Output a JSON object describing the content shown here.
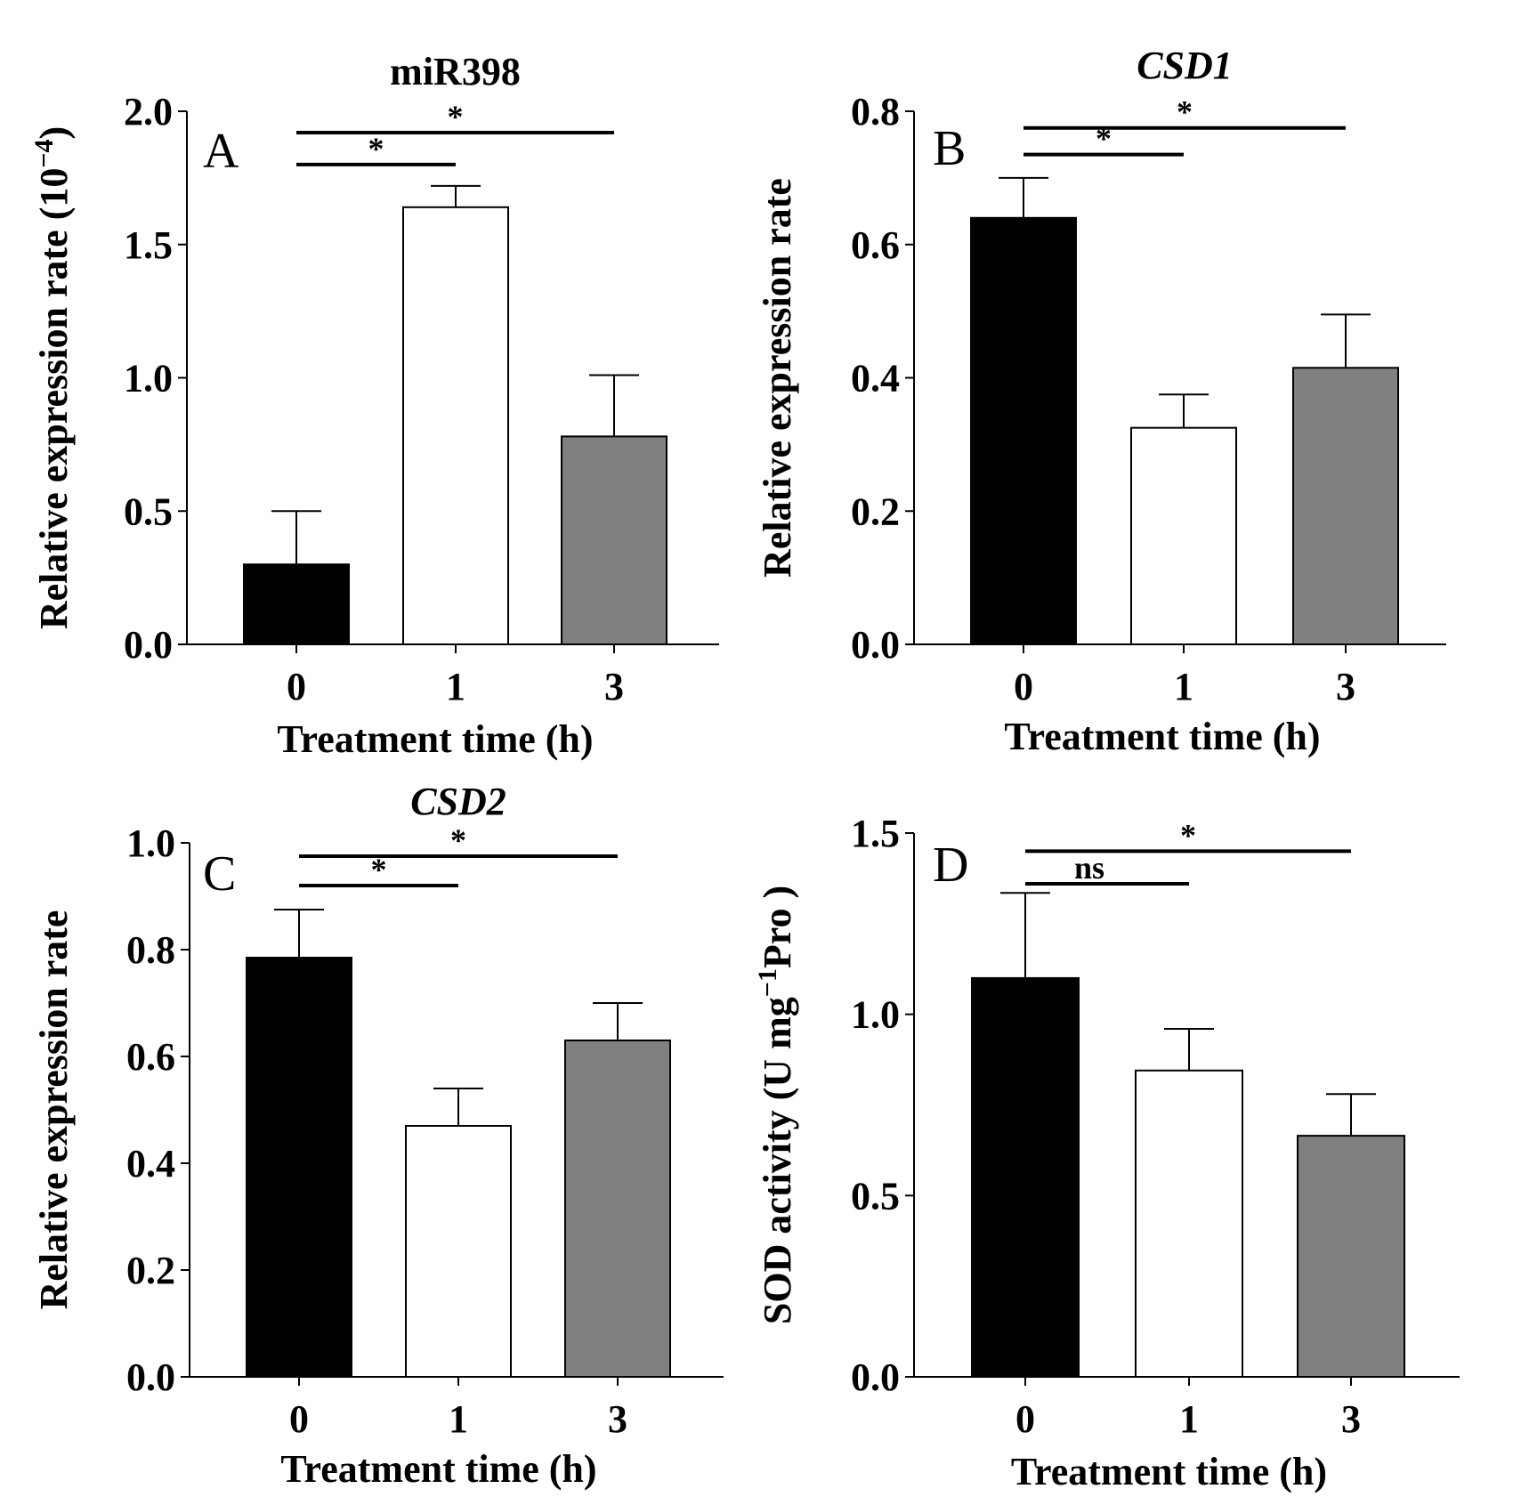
{
  "chart_data": [
    {
      "type": "bar",
      "panel_letter": "A",
      "title": "miR398",
      "title_italic": false,
      "xlabel": "Treatment time (h)",
      "ylabel": "Relative expression rate (10",
      "ylabel_superscript": "−4",
      "ylabel_suffix": ")",
      "ylim": [
        0,
        2.0
      ],
      "yticks": [
        "0.0",
        "0.5",
        "1.0",
        "1.5",
        "2.0"
      ],
      "categories": [
        "0",
        "1",
        "3"
      ],
      "values": [
        0.3,
        1.64,
        0.78
      ],
      "errors": [
        0.2,
        0.08,
        0.23
      ],
      "bar_colors": [
        "#000000",
        "#ffffff",
        "#808080"
      ],
      "significance": [
        {
          "from": 0,
          "to": 2,
          "y": 1.92,
          "label": "*"
        },
        {
          "from": 0,
          "to": 1,
          "y": 1.8,
          "label": "*"
        }
      ]
    },
    {
      "type": "bar",
      "panel_letter": "B",
      "title": "CSD1",
      "title_italic": true,
      "xlabel": "Treatment time (h)",
      "ylabel": "Relative expression rate",
      "ylim": [
        0,
        0.8
      ],
      "yticks": [
        "0.0",
        "0.2",
        "0.4",
        "0.6",
        "0.8"
      ],
      "categories": [
        "0",
        "1",
        "3"
      ],
      "values": [
        0.64,
        0.325,
        0.415
      ],
      "errors": [
        0.06,
        0.05,
        0.08
      ],
      "bar_colors": [
        "#000000",
        "#ffffff",
        "#808080"
      ],
      "significance": [
        {
          "from": 0,
          "to": 2,
          "y": 0.775,
          "label": "*"
        },
        {
          "from": 0,
          "to": 1,
          "y": 0.735,
          "label": "*"
        }
      ]
    },
    {
      "type": "bar",
      "panel_letter": "C",
      "title": "CSD2",
      "title_italic": true,
      "xlabel": "Treatment time (h)",
      "ylabel": "Relative expression rate",
      "ylim": [
        0,
        1.0
      ],
      "yticks": [
        "0.0",
        "0.2",
        "0.4",
        "0.6",
        "0.8",
        "1.0"
      ],
      "categories": [
        "0",
        "1",
        "3"
      ],
      "values": [
        0.785,
        0.47,
        0.63
      ],
      "errors": [
        0.09,
        0.07,
        0.07
      ],
      "bar_colors": [
        "#000000",
        "#ffffff",
        "#808080"
      ],
      "significance": [
        {
          "from": 0,
          "to": 2,
          "y": 0.975,
          "label": "*"
        },
        {
          "from": 0,
          "to": 1,
          "y": 0.92,
          "label": "*"
        }
      ]
    },
    {
      "type": "bar",
      "panel_letter": "D",
      "title": "",
      "title_italic": false,
      "xlabel": "Treatment time (h)",
      "ylabel": "SOD activity (U mg",
      "ylabel_superscript": "−1",
      "ylabel_suffix": "Pro )",
      "ylim": [
        0,
        1.5
      ],
      "yticks": [
        "0.0",
        "0.5",
        "1.0",
        "1.5"
      ],
      "categories": [
        "0",
        "1",
        "3"
      ],
      "values": [
        1.1,
        0.845,
        0.665
      ],
      "errors": [
        0.235,
        0.115,
        0.115
      ],
      "bar_colors": [
        "#000000",
        "#ffffff",
        "#808080"
      ],
      "significance": [
        {
          "from": 0,
          "to": 2,
          "y": 1.45,
          "label": "*"
        },
        {
          "from": 0,
          "to": 1,
          "y": 1.36,
          "label": "ns"
        }
      ]
    }
  ]
}
